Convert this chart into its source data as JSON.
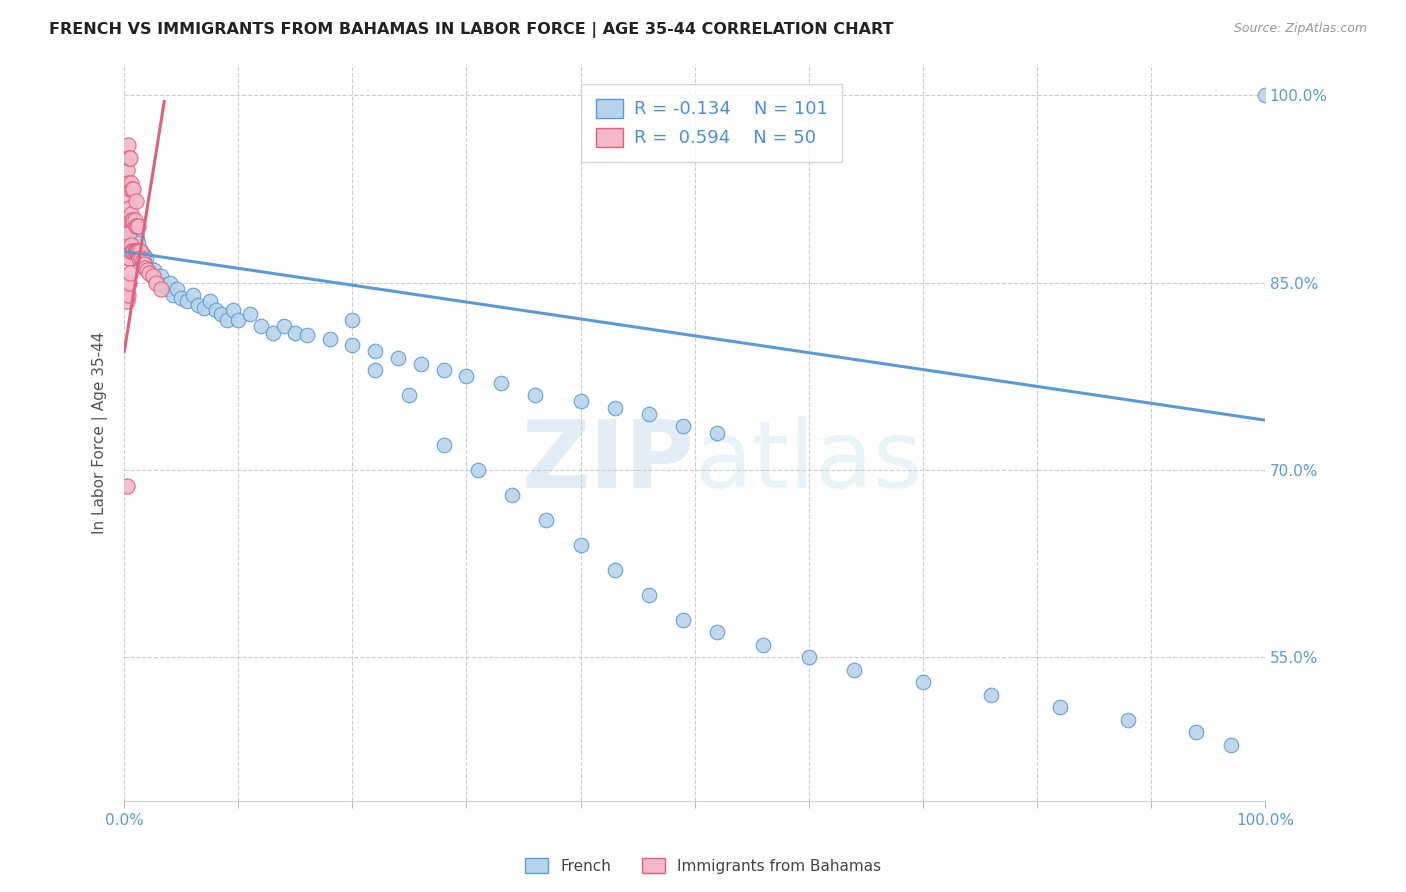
{
  "title": "FRENCH VS IMMIGRANTS FROM BAHAMAS IN LABOR FORCE | AGE 35-44 CORRELATION CHART",
  "source": "Source: ZipAtlas.com",
  "ylabel": "In Labor Force | Age 35-44",
  "xmin": 0.0,
  "xmax": 1.0,
  "ymin": 0.435,
  "ymax": 1.025,
  "blue_R": -0.134,
  "blue_N": 101,
  "pink_R": 0.594,
  "pink_N": 50,
  "blue_color": "#b8d4ed",
  "blue_edge_color": "#5b9bd5",
  "pink_color": "#f4b8c8",
  "pink_edge_color": "#e06080",
  "legend_label_blue": "French",
  "legend_label_pink": "Immigrants from Bahamas",
  "watermark_zip": "ZIP",
  "watermark_atlas": "atlas",
  "ytick_vals": [
    0.55,
    0.7,
    0.85,
    1.0
  ],
  "ytick_labels": [
    "55.0%",
    "70.0%",
    "85.0%",
    "100.0%"
  ],
  "blue_trend_x0": 0.0,
  "blue_trend_x1": 1.0,
  "blue_trend_y0": 0.875,
  "blue_trend_y1": 0.74,
  "pink_trend_x0": 0.0,
  "pink_trend_x1": 0.035,
  "pink_trend_y0": 0.795,
  "pink_trend_y1": 0.995,
  "blue_x": [
    0.002,
    0.003,
    0.003,
    0.004,
    0.004,
    0.004,
    0.005,
    0.005,
    0.005,
    0.006,
    0.006,
    0.006,
    0.007,
    0.007,
    0.007,
    0.007,
    0.008,
    0.008,
    0.008,
    0.009,
    0.009,
    0.009,
    0.01,
    0.01,
    0.01,
    0.011,
    0.011,
    0.012,
    0.012,
    0.013,
    0.014,
    0.015,
    0.016,
    0.017,
    0.018,
    0.019,
    0.02,
    0.022,
    0.024,
    0.026,
    0.028,
    0.03,
    0.032,
    0.035,
    0.038,
    0.04,
    0.043,
    0.046,
    0.05,
    0.055,
    0.06,
    0.065,
    0.07,
    0.075,
    0.08,
    0.085,
    0.09,
    0.095,
    0.1,
    0.11,
    0.12,
    0.13,
    0.14,
    0.15,
    0.16,
    0.18,
    0.2,
    0.22,
    0.24,
    0.26,
    0.28,
    0.3,
    0.33,
    0.36,
    0.4,
    0.43,
    0.46,
    0.49,
    0.52,
    0.2,
    0.22,
    0.25,
    0.28,
    0.31,
    0.34,
    0.37,
    0.4,
    0.43,
    0.46,
    0.49,
    0.52,
    0.56,
    0.6,
    0.64,
    0.7,
    0.76,
    0.82,
    0.88,
    0.94,
    0.97,
    1.0
  ],
  "blue_y": [
    0.88,
    0.875,
    0.89,
    0.87,
    0.885,
    0.895,
    0.875,
    0.885,
    0.895,
    0.87,
    0.88,
    0.89,
    0.87,
    0.878,
    0.888,
    0.895,
    0.87,
    0.88,
    0.89,
    0.875,
    0.882,
    0.892,
    0.87,
    0.878,
    0.888,
    0.875,
    0.885,
    0.87,
    0.882,
    0.875,
    0.87,
    0.875,
    0.868,
    0.872,
    0.865,
    0.87,
    0.86,
    0.862,
    0.855,
    0.86,
    0.852,
    0.85,
    0.855,
    0.848,
    0.845,
    0.85,
    0.84,
    0.845,
    0.838,
    0.835,
    0.84,
    0.832,
    0.83,
    0.835,
    0.828,
    0.825,
    0.82,
    0.828,
    0.82,
    0.825,
    0.815,
    0.81,
    0.815,
    0.81,
    0.808,
    0.805,
    0.8,
    0.795,
    0.79,
    0.785,
    0.78,
    0.775,
    0.77,
    0.76,
    0.755,
    0.75,
    0.745,
    0.735,
    0.73,
    0.82,
    0.78,
    0.76,
    0.72,
    0.7,
    0.68,
    0.66,
    0.64,
    0.62,
    0.6,
    0.58,
    0.57,
    0.56,
    0.55,
    0.54,
    0.53,
    0.52,
    0.51,
    0.5,
    0.49,
    0.48,
    1.0
  ],
  "pink_x": [
    0.002,
    0.002,
    0.002,
    0.003,
    0.003,
    0.003,
    0.003,
    0.004,
    0.004,
    0.004,
    0.004,
    0.005,
    0.005,
    0.005,
    0.005,
    0.006,
    0.006,
    0.006,
    0.007,
    0.007,
    0.007,
    0.008,
    0.008,
    0.008,
    0.009,
    0.009,
    0.01,
    0.01,
    0.01,
    0.011,
    0.011,
    0.012,
    0.012,
    0.013,
    0.014,
    0.015,
    0.016,
    0.017,
    0.018,
    0.02,
    0.022,
    0.025,
    0.028,
    0.032,
    0.001,
    0.002,
    0.003,
    0.004,
    0.005,
    0.002
  ],
  "pink_y": [
    0.88,
    0.92,
    0.94,
    0.87,
    0.9,
    0.93,
    0.96,
    0.87,
    0.89,
    0.91,
    0.95,
    0.875,
    0.9,
    0.925,
    0.95,
    0.88,
    0.905,
    0.93,
    0.875,
    0.9,
    0.925,
    0.875,
    0.9,
    0.925,
    0.875,
    0.9,
    0.875,
    0.895,
    0.915,
    0.875,
    0.895,
    0.875,
    0.895,
    0.87,
    0.875,
    0.87,
    0.868,
    0.865,
    0.862,
    0.86,
    0.858,
    0.855,
    0.85,
    0.845,
    0.84,
    0.835,
    0.84,
    0.85,
    0.858,
    0.687
  ]
}
